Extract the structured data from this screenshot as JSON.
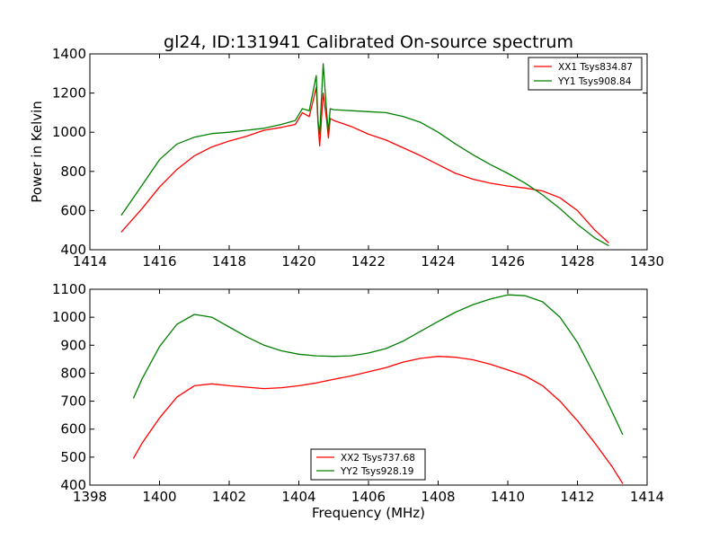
{
  "chart_data": [
    {
      "type": "line",
      "title": "gl24, ID:131941 Calibrated On-source spectrum",
      "xlabel": "",
      "ylabel": "Power in Kelvin",
      "xlim": [
        1414,
        1430
      ],
      "ylim": [
        400,
        1400
      ],
      "xticks": [
        1414,
        1416,
        1418,
        1420,
        1422,
        1424,
        1426,
        1428,
        1430
      ],
      "yticks": [
        400,
        600,
        800,
        1000,
        1200,
        1400
      ],
      "legend_position": "top-right",
      "series": [
        {
          "name": "XX1 Tsys834.87",
          "color": "#ff0000",
          "x": [
            1414.9,
            1415.5,
            1416.0,
            1416.5,
            1417.0,
            1417.5,
            1418.0,
            1418.5,
            1419.0,
            1419.5,
            1419.9,
            1420.1,
            1420.3,
            1420.5,
            1420.55,
            1420.6,
            1420.7,
            1420.8,
            1420.85,
            1420.9,
            1421.0,
            1421.5,
            1422.0,
            1422.5,
            1423.0,
            1423.5,
            1424.0,
            1424.5,
            1425.0,
            1425.5,
            1426.0,
            1426.5,
            1427.0,
            1427.5,
            1428.0,
            1428.5,
            1428.9
          ],
          "y": [
            490,
            610,
            720,
            810,
            880,
            925,
            955,
            980,
            1010,
            1025,
            1040,
            1100,
            1080,
            1230,
            1050,
            930,
            1200,
            1060,
            970,
            1070,
            1060,
            1030,
            990,
            960,
            920,
            880,
            835,
            790,
            760,
            740,
            725,
            715,
            700,
            665,
            600,
            500,
            435
          ]
        },
        {
          "name": "YY1 Tsys908.84",
          "color": "#008000",
          "x": [
            1414.9,
            1415.5,
            1416.0,
            1416.5,
            1417.0,
            1417.5,
            1418.0,
            1418.5,
            1419.0,
            1419.5,
            1419.9,
            1420.1,
            1420.3,
            1420.5,
            1420.55,
            1420.6,
            1420.7,
            1420.8,
            1420.85,
            1420.9,
            1421.0,
            1421.5,
            1422.0,
            1422.5,
            1423.0,
            1423.5,
            1424.0,
            1424.5,
            1425.0,
            1425.5,
            1426.0,
            1426.5,
            1427.0,
            1427.5,
            1428.0,
            1428.5,
            1428.9
          ],
          "y": [
            575,
            730,
            860,
            940,
            975,
            993,
            1000,
            1010,
            1020,
            1040,
            1060,
            1120,
            1110,
            1290,
            1060,
            990,
            1350,
            1100,
            1000,
            1120,
            1115,
            1110,
            1105,
            1100,
            1080,
            1050,
            1000,
            940,
            885,
            835,
            790,
            740,
            680,
            610,
            530,
            460,
            420
          ]
        }
      ]
    },
    {
      "type": "line",
      "title": "",
      "xlabel": "Frequency (MHz)",
      "ylabel": "",
      "xlim": [
        1398,
        1414
      ],
      "ylim": [
        400,
        1100
      ],
      "xticks": [
        1398,
        1400,
        1402,
        1404,
        1406,
        1408,
        1410,
        1412,
        1414
      ],
      "yticks": [
        400,
        500,
        600,
        700,
        800,
        900,
        1000,
        1100
      ],
      "legend_position": "lower-center",
      "series": [
        {
          "name": "XX2 Tsys737.68",
          "color": "#ff0000",
          "x": [
            1399.25,
            1399.5,
            1400.0,
            1400.5,
            1401.0,
            1401.5,
            1402.0,
            1402.5,
            1403.0,
            1403.5,
            1404.0,
            1404.5,
            1405.0,
            1405.5,
            1406.0,
            1406.5,
            1407.0,
            1407.5,
            1408.0,
            1408.5,
            1409.0,
            1409.5,
            1410.0,
            1410.5,
            1411.0,
            1411.5,
            1412.0,
            1412.5,
            1413.0,
            1413.3
          ],
          "y": [
            495,
            550,
            640,
            715,
            755,
            762,
            755,
            750,
            745,
            748,
            755,
            765,
            778,
            790,
            805,
            820,
            840,
            853,
            860,
            857,
            848,
            832,
            812,
            790,
            755,
            700,
            630,
            550,
            465,
            405
          ]
        },
        {
          "name": "YY2 Tsys928.19",
          "color": "#008000",
          "x": [
            1399.25,
            1399.5,
            1400.0,
            1400.5,
            1401.0,
            1401.5,
            1402.0,
            1402.5,
            1403.0,
            1403.5,
            1404.0,
            1404.5,
            1405.0,
            1405.5,
            1406.0,
            1406.5,
            1407.0,
            1407.5,
            1408.0,
            1408.5,
            1409.0,
            1409.5,
            1410.0,
            1410.5,
            1411.0,
            1411.5,
            1412.0,
            1412.5,
            1413.0,
            1413.3
          ],
          "y": [
            710,
            780,
            895,
            975,
            1010,
            1000,
            965,
            930,
            900,
            880,
            868,
            862,
            860,
            862,
            872,
            888,
            915,
            950,
            985,
            1018,
            1045,
            1065,
            1080,
            1077,
            1055,
            1000,
            910,
            790,
            660,
            580
          ]
        }
      ]
    }
  ]
}
